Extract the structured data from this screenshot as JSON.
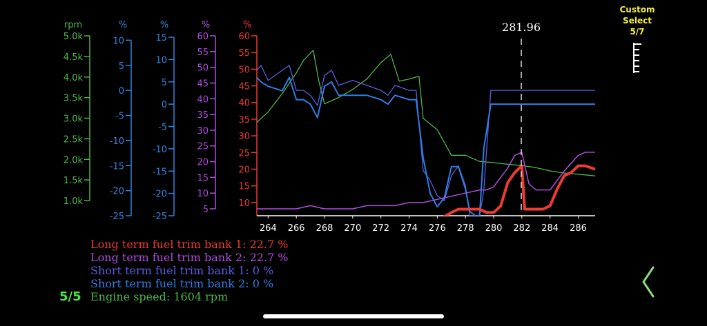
{
  "custom_select": {
    "line1": "Custom",
    "line2": "Select",
    "line3": "5/7"
  },
  "page_indicator": "5/5",
  "cursor_label": "281.96",
  "colors": {
    "rpm": "#4cb848",
    "blue_axis": "#2f86e0",
    "purple": "#b04ee0",
    "red": "#ef3b31",
    "stft1": "#5a5ee2",
    "stft2": "#2f7ee6",
    "yellow": "#f2ee3c",
    "chevron": "#8fdc7c"
  },
  "legend": [
    {
      "text": "Long term fuel trim bank 1: 22.7 %",
      "color": "#ef3b31"
    },
    {
      "text": "Long term fuel trim bank 2: 22.7 %",
      "color": "#b04ee0"
    },
    {
      "text": "Short term fuel trim bank 1: 0 %",
      "color": "#5a5ee2"
    },
    {
      "text": "Short term fuel trim bank 2: 0 %",
      "color": "#2f7ee6"
    },
    {
      "text": "Engine speed: 1604 rpm",
      "color": "#4cb848"
    }
  ],
  "chart_data": {
    "type": "line",
    "xlim": [
      263.2,
      287.2
    ],
    "x_ticks": [
      264,
      266,
      268,
      270,
      272,
      274,
      276,
      278,
      280,
      282,
      284,
      286
    ],
    "cursor_x": 281.96,
    "axes": [
      {
        "id": "rpm",
        "unit": "rpm",
        "range": [
          1000,
          5000
        ],
        "ticks": [
          "5.0k",
          "4.5k",
          "4.0k",
          "3.5k",
          "3.0k",
          "2.5k",
          "2.0k",
          "1.5k",
          "1.0k"
        ],
        "tick_values": [
          5000,
          4500,
          4000,
          3500,
          3000,
          2500,
          2000,
          1500,
          1000
        ]
      },
      {
        "id": "stft1",
        "unit": "%",
        "range": [
          -25,
          15
        ],
        "ticks": [
          "10",
          "5",
          "0",
          "-5",
          "-10",
          "-15",
          "-20",
          "-25"
        ],
        "tick_values": [
          10,
          5,
          0,
          -5,
          -10,
          -15,
          -20,
          -25
        ]
      },
      {
        "id": "stft2",
        "unit": "%",
        "range": [
          -25,
          15
        ],
        "ticks": [
          "15",
          "10",
          "5",
          "0",
          "-5",
          "-10",
          "-15",
          "-20",
          "-25"
        ],
        "tick_values": [
          15,
          10,
          5,
          0,
          -5,
          -10,
          -15,
          -20,
          -25
        ]
      },
      {
        "id": "ltft2",
        "unit": "%",
        "range": [
          5,
          60
        ],
        "ticks": [
          "60",
          "55",
          "50",
          "45",
          "40",
          "35",
          "30",
          "25",
          "20",
          "15",
          "10",
          "5"
        ],
        "tick_values": [
          60,
          55,
          50,
          45,
          40,
          35,
          30,
          25,
          20,
          15,
          10,
          5
        ]
      },
      {
        "id": "ltft1",
        "unit": "%",
        "range": [
          5,
          60
        ],
        "ticks": [
          "60",
          "55",
          "50",
          "45",
          "40",
          "35",
          "30",
          "25",
          "20",
          "15",
          "10"
        ],
        "tick_values": [
          60,
          55,
          50,
          45,
          40,
          35,
          30,
          25,
          20,
          15,
          10
        ]
      }
    ],
    "series": [
      {
        "axis": "rpm",
        "color": "#4cb848",
        "width": 1.3,
        "x": [
          263.2,
          264,
          265,
          266,
          266.5,
          267.2,
          267.6,
          268,
          269,
          270,
          271,
          272,
          272.7,
          273.3,
          274,
          274.7,
          275,
          276,
          277,
          278,
          279,
          280,
          281,
          282,
          283,
          284,
          285,
          286,
          287.2
        ],
        "y": [
          2900,
          3150,
          3600,
          4100,
          4400,
          4650,
          3900,
          3350,
          3500,
          3700,
          3950,
          4350,
          4550,
          3900,
          3950,
          4020,
          3000,
          2720,
          2100,
          2100,
          1950,
          1920,
          1880,
          1850,
          1800,
          1720,
          1670,
          1640,
          1600
        ]
      },
      {
        "axis": "stft1",
        "color": "#5a5ee2",
        "width": 1.3,
        "x": [
          263.2,
          263.5,
          264,
          265,
          265.5,
          266,
          266.5,
          267,
          267.5,
          268,
          268.5,
          269,
          270,
          271,
          272,
          272.5,
          273,
          274,
          274.5,
          275,
          275.5,
          276,
          276.5,
          277,
          277.5,
          278,
          278.3,
          278.7,
          279,
          279.3,
          279.8,
          280,
          281,
          282,
          283,
          284,
          285,
          286,
          287.2
        ],
        "y": [
          4,
          5,
          2,
          4,
          5,
          0,
          0,
          -1,
          -3,
          3,
          4,
          1,
          2,
          1,
          0,
          -1,
          1,
          0,
          0,
          -16,
          -18,
          -21,
          -22,
          -17,
          -15,
          -19,
          -25,
          -25,
          -25,
          -20,
          0,
          0,
          0,
          0,
          0,
          0,
          0,
          0,
          0
        ]
      },
      {
        "axis": "stft2",
        "color": "#2f7ee6",
        "width": 2,
        "x": [
          263.2,
          263.5,
          264,
          265,
          265.5,
          266,
          266.5,
          267,
          267.5,
          268,
          268.5,
          269,
          270,
          271,
          272,
          272.5,
          273,
          274,
          274.5,
          275,
          275.5,
          276,
          276.5,
          277,
          277.5,
          278,
          278.3,
          278.7,
          279,
          279.3,
          279.8,
          280,
          281,
          282,
          283,
          284,
          285,
          286,
          287.2
        ],
        "y": [
          6,
          5,
          4,
          3,
          6,
          1,
          1,
          0,
          -3,
          4,
          5,
          2,
          2,
          2,
          1,
          0,
          2,
          1,
          1,
          -12,
          -20,
          -23,
          -21,
          -14,
          -14,
          -19,
          -24,
          -25,
          -25,
          -10,
          0,
          0,
          0,
          0,
          0,
          0,
          0,
          0,
          0
        ]
      },
      {
        "axis": "ltft2",
        "color": "#b04ee0",
        "width": 1.5,
        "x": [
          263.2,
          266,
          267,
          268,
          269,
          270,
          271,
          272,
          273,
          274,
          275,
          276,
          277,
          278,
          279,
          279.5,
          280,
          281,
          281.5,
          282,
          282.5,
          283,
          284,
          285,
          286,
          286.5,
          287.2
        ],
        "y": [
          5,
          5,
          6,
          5,
          5,
          5,
          6,
          6,
          6,
          7,
          7,
          8,
          9,
          10,
          11,
          11,
          12,
          18,
          22,
          23,
          13,
          11,
          11,
          17,
          22,
          23,
          23
        ]
      },
      {
        "axis": "ltft1",
        "color": "#ef3b31",
        "width": 4,
        "x": [
          276.2,
          277,
          277.5,
          278,
          279,
          279.5,
          280,
          280.5,
          281,
          281.5,
          282,
          282.2,
          283,
          283.5,
          284,
          284.5,
          285,
          285.5,
          286,
          286.5,
          287.2
        ],
        "y": [
          5,
          7,
          8,
          8,
          8,
          7,
          7,
          9,
          16,
          19,
          21,
          8,
          8,
          8,
          9,
          14,
          18,
          19,
          21,
          21,
          20
        ]
      }
    ]
  }
}
